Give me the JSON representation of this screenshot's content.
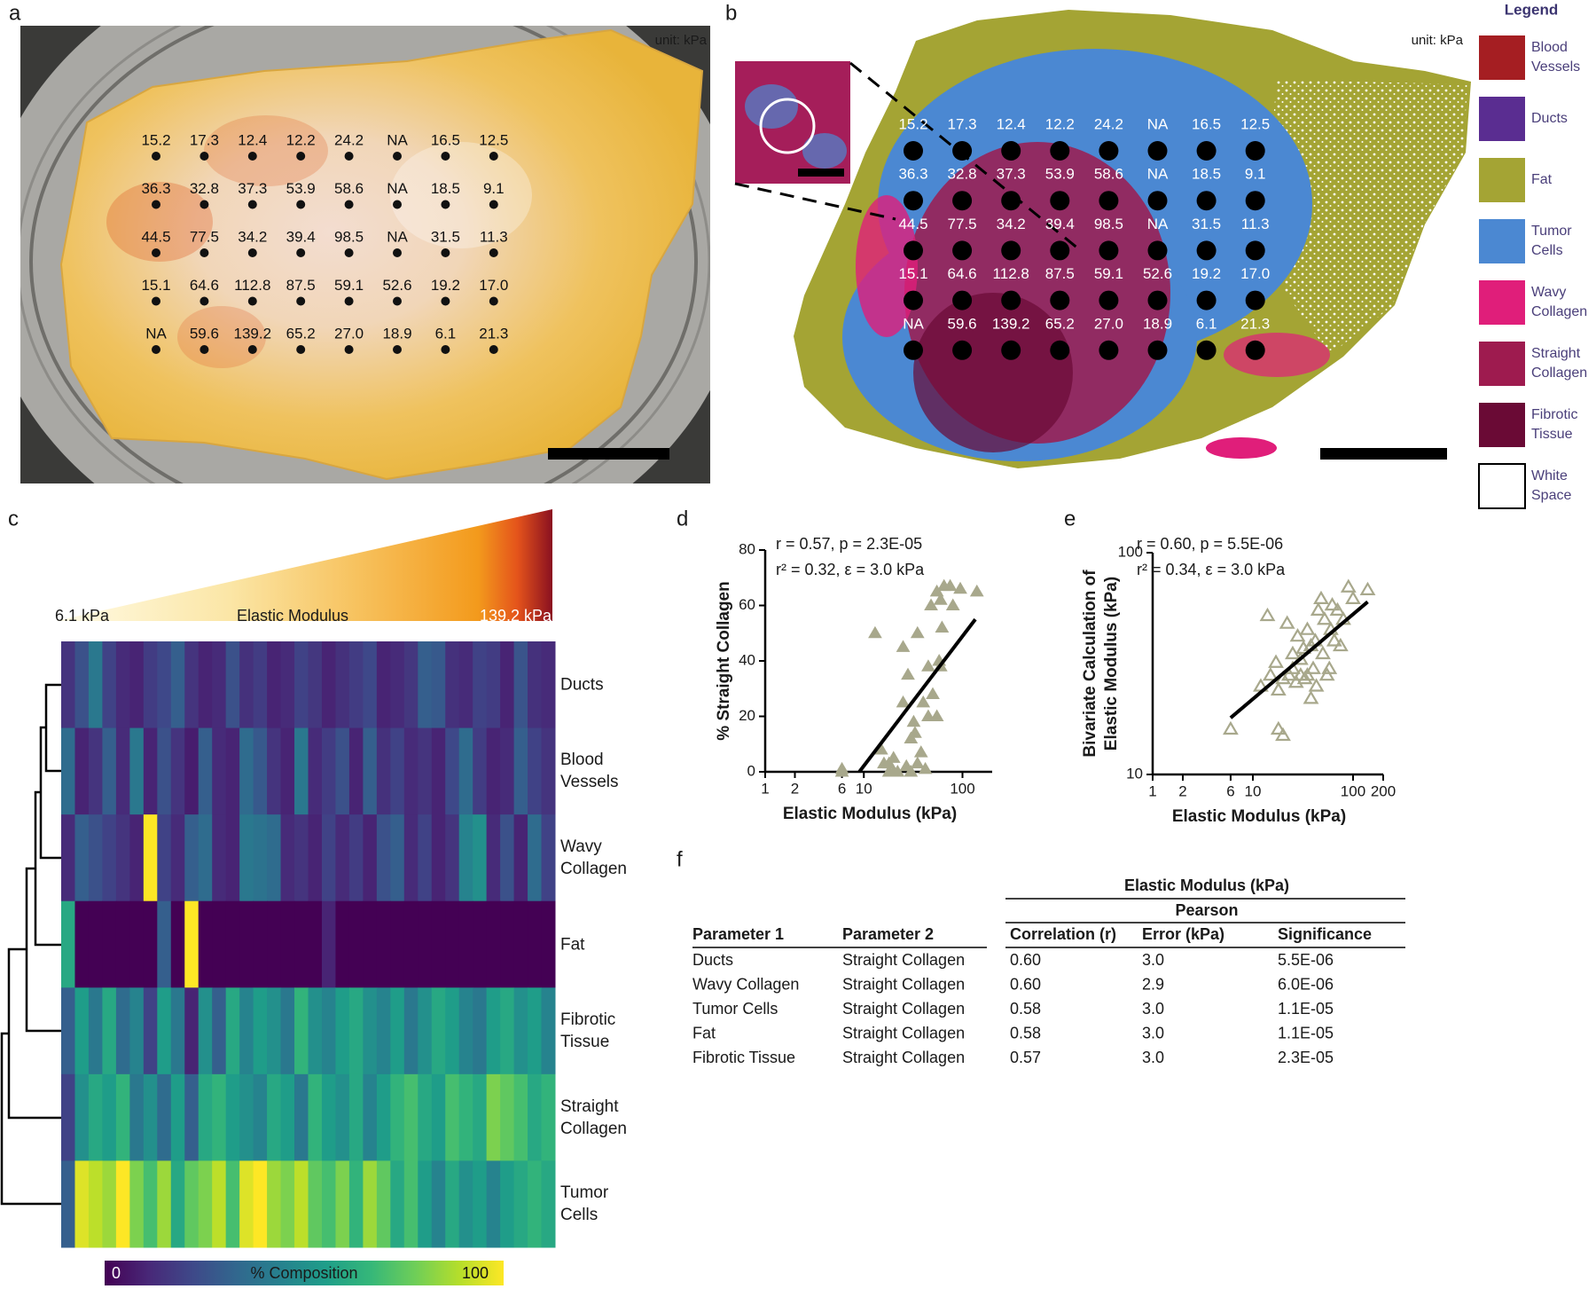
{
  "figure_a": {
    "panel": "a",
    "unit": "unit: kPa",
    "grid": [
      [
        "15.2",
        "17.3",
        "12.4",
        "12.2",
        "24.2",
        "NA",
        "16.5",
        "12.5"
      ],
      [
        "36.3",
        "32.8",
        "37.3",
        "53.9",
        "58.6",
        "NA",
        "18.5",
        "9.1"
      ],
      [
        "44.5",
        "77.5",
        "34.2",
        "39.4",
        "98.5",
        "NA",
        "31.5",
        "11.3"
      ],
      [
        "15.1",
        "64.6",
        "112.8",
        "87.5",
        "59.1",
        "52.6",
        "19.2",
        "17.0"
      ],
      [
        "NA",
        "59.6",
        "139.2",
        "65.2",
        "27.0",
        "18.9",
        "6.1",
        "21.3"
      ]
    ]
  },
  "figure_b": {
    "panel": "b",
    "unit": "unit: kPa",
    "grid": [
      [
        "15.2",
        "17.3",
        "12.4",
        "12.2",
        "24.2",
        "NA",
        "16.5",
        "12.5"
      ],
      [
        "36.3",
        "32.8",
        "37.3",
        "53.9",
        "58.6",
        "NA",
        "18.5",
        "9.1"
      ],
      [
        "44.5",
        "77.5",
        "34.2",
        "39.4",
        "98.5",
        "NA",
        "31.5",
        "11.3"
      ],
      [
        "15.1",
        "64.6",
        "112.8",
        "87.5",
        "59.1",
        "52.6",
        "19.2",
        "17.0"
      ],
      [
        "NA",
        "59.6",
        "139.2",
        "65.2",
        "27.0",
        "18.9",
        "6.1",
        "21.3"
      ]
    ],
    "legend": {
      "title": "Legend",
      "items": [
        {
          "name": "Blood Vessels",
          "color": "#a51e22"
        },
        {
          "name": "Ducts",
          "color": "#5a2d91"
        },
        {
          "name": "Fat",
          "color": "#a4a434"
        },
        {
          "name": "Tumor Cells",
          "color": "#4b88d2"
        },
        {
          "name": "Wavy Collagen",
          "color": "#e01e7a"
        },
        {
          "name": "Straight Collagen",
          "color": "#9e1b4f"
        },
        {
          "name": "Fibrotic Tissue",
          "color": "#6a0a35"
        },
        {
          "name": "White Space",
          "color": "#ffffff"
        }
      ]
    }
  },
  "chart_data": [
    {
      "type": "heatmap",
      "panel": "c",
      "modulus_bar": {
        "label": "Elastic Modulus",
        "min_label": "6.1 kPa",
        "max_label": "139.2 kPa"
      },
      "rows": [
        "Ducts",
        "Blood Vessels",
        "Wavy Collagen",
        "Fat",
        "Fibrotic Tissue",
        "Straight Collagen",
        "Tumor Cells"
      ],
      "values": [
        [
          15,
          25,
          40,
          20,
          12,
          10,
          18,
          22,
          30,
          15,
          10,
          12,
          25,
          14,
          18,
          10,
          12,
          20,
          16,
          10,
          14,
          18,
          22,
          10,
          12,
          16,
          30,
          28,
          14,
          12,
          20,
          18,
          10,
          26,
          14,
          12
        ],
        [
          35,
          10,
          15,
          30,
          12,
          40,
          10,
          25,
          15,
          8,
          30,
          12,
          10,
          35,
          28,
          15,
          10,
          40,
          12,
          18,
          25,
          10,
          30,
          14,
          20,
          12,
          15,
          10,
          22,
          35,
          18,
          10,
          12,
          30,
          20,
          15
        ],
        [
          12,
          30,
          25,
          20,
          15,
          10,
          100,
          20,
          12,
          30,
          35,
          12,
          10,
          40,
          38,
          35,
          12,
          15,
          10,
          20,
          12,
          18,
          10,
          25,
          30,
          12,
          20,
          10,
          15,
          45,
          50,
          12,
          25,
          10,
          35,
          20
        ],
        [
          60,
          0,
          0,
          0,
          0,
          0,
          0,
          30,
          0,
          100,
          0,
          0,
          0,
          0,
          0,
          0,
          0,
          0,
          0,
          10,
          0,
          0,
          0,
          0,
          0,
          0,
          0,
          0,
          0,
          0,
          0,
          0,
          0,
          0,
          0,
          0
        ],
        [
          30,
          55,
          40,
          60,
          35,
          45,
          20,
          55,
          40,
          10,
          50,
          30,
          60,
          45,
          55,
          50,
          40,
          65,
          50,
          45,
          55,
          60,
          50,
          45,
          55,
          40,
          50,
          60,
          55,
          45,
          40,
          55,
          60,
          50,
          55,
          45
        ],
        [
          20,
          50,
          60,
          55,
          65,
          40,
          50,
          35,
          55,
          30,
          60,
          65,
          55,
          50,
          45,
          60,
          55,
          40,
          65,
          55,
          50,
          60,
          45,
          55,
          65,
          70,
          60,
          55,
          70,
          65,
          60,
          80,
          75,
          70,
          60,
          65
        ],
        [
          30,
          95,
          90,
          85,
          100,
          80,
          70,
          85,
          60,
          75,
          80,
          90,
          70,
          95,
          100,
          85,
          80,
          90,
          75,
          70,
          80,
          65,
          85,
          75,
          60,
          70,
          55,
          45,
          60,
          50,
          55,
          45,
          55,
          60,
          65,
          60
        ]
      ],
      "colormap": [
        "#440154",
        "#482878",
        "#3e4989",
        "#31688e",
        "#26828e",
        "#1f9e89",
        "#35b779",
        "#6ece58",
        "#b5de2b",
        "#fde725"
      ],
      "colorbar": {
        "label": "% Composition",
        "lim": [
          0,
          100
        ],
        "ticks": [
          0,
          100
        ]
      }
    },
    {
      "type": "scatter",
      "panel": "d",
      "annotations": [
        "r = 0.57, p = 2.3E-05",
        "r² = 0.32, ε = 3.0 kPa"
      ],
      "xlabel": "Elastic Modulus (kPa)",
      "ylabel": [
        "% Straight Collagen"
      ],
      "x": [
        6,
        6,
        13,
        15,
        16,
        18,
        18,
        20,
        20,
        22,
        25,
        25,
        27,
        28,
        30,
        30,
        32,
        33,
        35,
        35,
        38,
        40,
        42,
        45,
        48,
        50,
        55,
        55,
        58,
        60,
        62,
        65,
        75,
        80,
        95,
        140,
        60,
        45
      ],
      "values": [
        0,
        1,
        50,
        8,
        3,
        0,
        3,
        0,
        5,
        0,
        45,
        25,
        2,
        35,
        12,
        0,
        18,
        14,
        50,
        3,
        7,
        25,
        1,
        38,
        60,
        28,
        20,
        65,
        40,
        62,
        52,
        67,
        67,
        60,
        66,
        65,
        38,
        20
      ],
      "color": "#a8a88c",
      "marker_filled": true,
      "fit": {
        "x": [
          9,
          135
        ],
        "y": [
          0,
          55
        ]
      },
      "xscale": "log",
      "xlim": [
        1,
        200
      ],
      "xticks": [
        1,
        2,
        6,
        10,
        100
      ],
      "yscale": "linear",
      "ylim": [
        0,
        80
      ],
      "yticks": [
        0,
        20,
        40,
        60,
        80
      ]
    },
    {
      "type": "scatter",
      "panel": "e",
      "annotations": [
        "r = 0.60, p = 5.5E-06",
        "r² = 0.34, ε = 3.0 kPa"
      ],
      "xlabel": "Elastic Modulus (kPa)",
      "ylabel": [
        "Bivariate Calculation of",
        "Elastic Modulus (kPa)"
      ],
      "x": [
        6,
        12,
        14,
        15,
        17,
        18,
        18,
        20,
        20,
        22,
        23,
        25,
        25,
        27,
        28,
        30,
        30,
        32,
        33,
        35,
        35,
        38,
        38,
        40,
        42,
        43,
        45,
        48,
        50,
        52,
        55,
        58,
        60,
        62,
        65,
        70,
        75,
        80,
        90,
        100,
        140
      ],
      "values": [
        16,
        25,
        52,
        28,
        32,
        16,
        24,
        15,
        27,
        48,
        28,
        35,
        30,
        26,
        42,
        28,
        33,
        37,
        27,
        28,
        45,
        38,
        22,
        30,
        40,
        25,
        55,
        62,
        35,
        50,
        28,
        30,
        45,
        58,
        40,
        55,
        38,
        50,
        70,
        62,
        68
      ],
      "color": "#a8a88c",
      "marker_filled": false,
      "fit": {
        "x": [
          6,
          140
        ],
        "y": [
          18,
          60
        ]
      },
      "xscale": "log",
      "xlim": [
        1,
        200
      ],
      "xticks": [
        1,
        2,
        6,
        10,
        100,
        200
      ],
      "yscale": "log",
      "ylim": [
        10,
        100
      ],
      "yticks": [
        10,
        100
      ]
    }
  ],
  "table": {
    "panel": "f",
    "group_header": "Elastic Modulus (kPa)",
    "subgroup_header": "Pearson",
    "columns": [
      "Parameter 1",
      "Parameter 2",
      "Correlation (r)",
      "Error (kPa)",
      "Significance"
    ],
    "rows": [
      [
        "Ducts",
        "Straight Collagen",
        "0.60",
        "3.0",
        "5.5E-06"
      ],
      [
        "Wavy Collagen",
        "Straight Collagen",
        "0.60",
        "2.9",
        "6.0E-06"
      ],
      [
        "Tumor Cells",
        "Straight Collagen",
        "0.58",
        "3.0",
        "1.1E-05"
      ],
      [
        "Fat",
        "Straight Collagen",
        "0.58",
        "3.0",
        "1.1E-05"
      ],
      [
        "Fibrotic Tissue",
        "Straight Collagen",
        "0.57",
        "3.0",
        "2.3E-05"
      ]
    ]
  }
}
